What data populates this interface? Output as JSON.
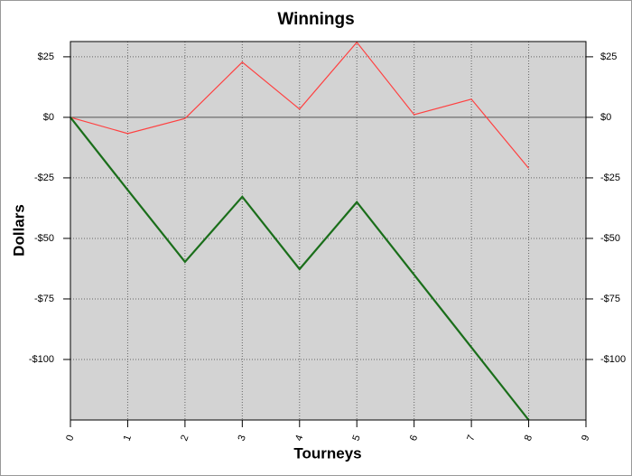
{
  "chart_data": {
    "type": "line",
    "title": "Winnings",
    "xlabel": "Tourneys",
    "ylabel": "Dollars",
    "x": [
      0,
      1,
      2,
      3,
      4,
      5,
      6,
      7,
      8
    ],
    "series": [
      {
        "color": "#ff4040",
        "values": [
          0,
          -6.7,
          -0.5,
          22.8,
          3.4,
          31,
          1.1,
          7.5,
          -21
        ]
      },
      {
        "color": "#1a6e1a",
        "values": [
          0,
          -30,
          -59.7,
          -32.8,
          -62.7,
          -35,
          -65,
          -95,
          -125
        ]
      }
    ],
    "xlim": [
      0,
      9
    ],
    "xticks": [
      0,
      1,
      2,
      3,
      4,
      5,
      6,
      7,
      8,
      9
    ],
    "ylim": [
      -125,
      31.3
    ],
    "yticks": [
      {
        "value": 25,
        "label": "$25"
      },
      {
        "value": 0,
        "label": "$0"
      },
      {
        "value": -25,
        "label": "-$25"
      },
      {
        "value": -50,
        "label": "-$50"
      },
      {
        "value": -75,
        "label": "-$75"
      },
      {
        "value": -100,
        "label": "-$100"
      }
    ],
    "grid": true
  }
}
